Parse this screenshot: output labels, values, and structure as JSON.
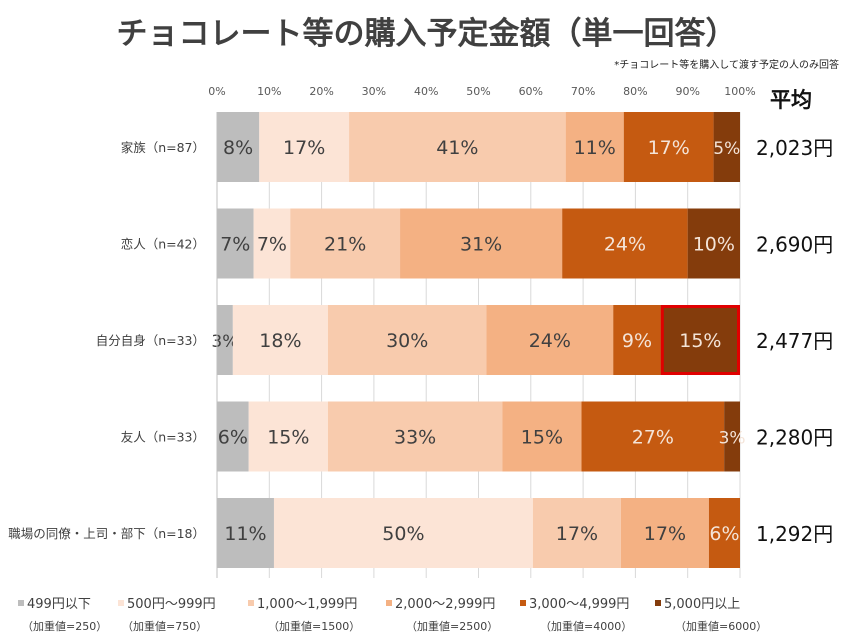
{
  "chart_data": {
    "type": "bar",
    "orientation": "horizontal-stacked-100",
    "title": "チョコレート等の購入予定金額（単一回答）",
    "subtitle": "*チョコレート等を購入して渡す予定の人のみ回答",
    "xlim": [
      0,
      100
    ],
    "xticks": [
      "0%",
      "10%",
      "20%",
      "30%",
      "40%",
      "50%",
      "60%",
      "70%",
      "80%",
      "90%",
      "100%"
    ],
    "grid": true,
    "legend_position": "bottom",
    "average_header": "平均",
    "categories": [
      "家族（n=87）",
      "恋人（n=42）",
      "自分自身（n=33）",
      "友人（n=33）",
      "職場の同僚・上司・部下（n=18）"
    ],
    "averages": [
      "2,023円",
      "2,690円",
      "2,477円",
      "2,280円",
      "1,292円"
    ],
    "series": [
      {
        "name": "499円以下",
        "weight_note": "（加重値=250）",
        "color": "#bdbdbd",
        "text_color": "#404040",
        "values": [
          8,
          7,
          3,
          6,
          11
        ]
      },
      {
        "name": "500円～999円",
        "weight_note": "（加重値=750）",
        "color": "#fce4d6",
        "text_color": "#404040",
        "values": [
          17,
          7,
          18,
          15,
          50
        ]
      },
      {
        "name": "1,000～1,999円",
        "weight_note": "（加重値=1500）",
        "color": "#f8cbad",
        "text_color": "#404040",
        "values": [
          41,
          21,
          30,
          33,
          17
        ]
      },
      {
        "name": "2,000～2,999円",
        "weight_note": "（加重値=2500）",
        "color": "#f4b183",
        "text_color": "#404040",
        "values": [
          11,
          31,
          24,
          15,
          17
        ]
      },
      {
        "name": "3,000～4,999円",
        "weight_note": "（加重値=4000）",
        "color": "#c55a11",
        "text_color": "#f4e4d8",
        "values": [
          17,
          24,
          9,
          27,
          6
        ]
      },
      {
        "name": "5,000円以上",
        "weight_note": "（加重値=6000）",
        "color": "#843c0c",
        "text_color": "#f4e4d8",
        "values": [
          5,
          10,
          15,
          3,
          0
        ]
      }
    ],
    "highlight": {
      "category_index": 2,
      "series_index": 5,
      "border_color": "#e00000"
    }
  }
}
